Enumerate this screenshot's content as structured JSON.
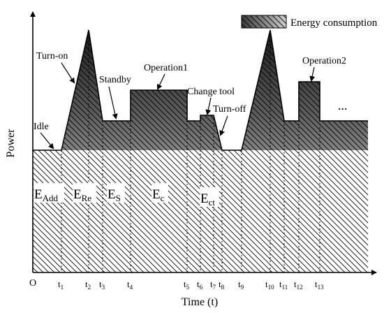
{
  "axes": {
    "y_label": "Power",
    "x_label": "Time (t)",
    "origin": "O"
  },
  "legend": {
    "label": "Energy consumption"
  },
  "annotations": {
    "idle": "Idle",
    "turn_on": "Turn-on",
    "standby": "Standby",
    "operation1": "Operation1",
    "change_tool": "Change tool",
    "turn_off": "Turn-off",
    "operation2": "Operation2",
    "ellipsis": "..."
  },
  "regions": [
    {
      "key": "add",
      "base": "E",
      "sub": "Add"
    },
    {
      "key": "re",
      "base": "E",
      "sub": "Re"
    },
    {
      "key": "s",
      "base": "E",
      "sub": "S"
    },
    {
      "key": "c",
      "base": "E",
      "sub": "c"
    },
    {
      "key": "ct",
      "base": "E",
      "sub": "ct"
    }
  ],
  "ticks": [
    {
      "base": "t",
      "sub": "1"
    },
    {
      "base": "t",
      "sub": "2"
    },
    {
      "base": "t",
      "sub": "3"
    },
    {
      "base": "t",
      "sub": "4"
    },
    {
      "base": "t",
      "sub": "5"
    },
    {
      "base": "t",
      "sub": "6"
    },
    {
      "base": "t",
      "sub": "7"
    },
    {
      "base": "t",
      "sub": "8"
    },
    {
      "base": "t",
      "sub": "9"
    },
    {
      "base": "t",
      "sub": "10"
    },
    {
      "base": "t",
      "sub": "11"
    },
    {
      "base": "t",
      "sub": "12"
    },
    {
      "base": "t",
      "sub": "13"
    }
  ]
}
